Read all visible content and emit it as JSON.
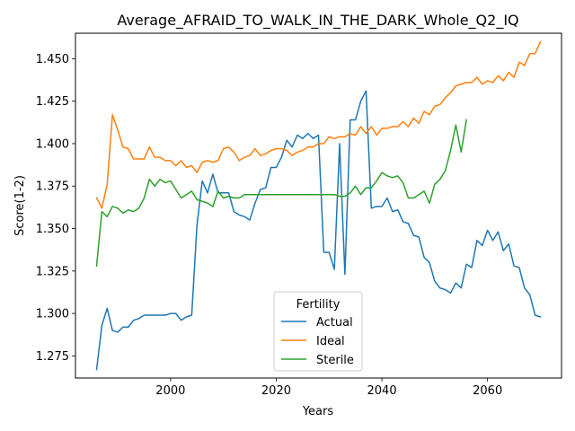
{
  "chart_data": {
    "type": "line",
    "title": "Average_AFRAID_TO_WALK_IN_THE_DARK_Whole_Q2_IQ",
    "xlabel": "Years",
    "ylabel": "Score(1-2)",
    "xlim": [
      1982,
      2074
    ],
    "ylim": [
      1.262,
      1.465
    ],
    "x_ticks": [
      2000,
      2020,
      2040,
      2060
    ],
    "x_tick_labels": [
      "2000",
      "2020",
      "2040",
      "2060"
    ],
    "y_ticks": [
      1.275,
      1.3,
      1.325,
      1.35,
      1.375,
      1.4,
      1.425,
      1.45
    ],
    "y_tick_labels": [
      "1.275",
      "1.300",
      "1.325",
      "1.350",
      "1.375",
      "1.400",
      "1.425",
      "1.450"
    ],
    "grid": false,
    "legend": {
      "title": "Fertility",
      "placement": "lower center"
    },
    "series": [
      {
        "name": "Actual",
        "color": "#1f77b4",
        "x": [
          1986,
          1987,
          1988,
          1989,
          1990,
          1991,
          1992,
          1993,
          1994,
          1995,
          1996,
          1997,
          1998,
          1999,
          2000,
          2001,
          2002,
          2003,
          2004,
          2005,
          2006,
          2007,
          2008,
          2009,
          2010,
          2011,
          2012,
          2013,
          2014,
          2015,
          2016,
          2017,
          2018,
          2019,
          2020,
          2021,
          2022,
          2023,
          2024,
          2025,
          2026,
          2027,
          2028,
          2029,
          2030,
          2031,
          2032,
          2033,
          2034,
          2035,
          2036,
          2037,
          2038,
          2039,
          2040,
          2041,
          2042,
          2043,
          2044,
          2045,
          2046,
          2047,
          2048,
          2049,
          2050,
          2051,
          2052,
          2053,
          2054,
          2055,
          2056,
          2057,
          2058,
          2059,
          2060,
          2061,
          2062,
          2063,
          2064,
          2065,
          2066,
          2067,
          2068,
          2069,
          2070
        ],
        "values": [
          1.267,
          1.293,
          1.303,
          1.29,
          1.289,
          1.292,
          1.292,
          1.296,
          1.297,
          1.299,
          1.299,
          1.299,
          1.299,
          1.299,
          1.3,
          1.3,
          1.296,
          1.298,
          1.299,
          1.352,
          1.378,
          1.371,
          1.382,
          1.371,
          1.371,
          1.371,
          1.36,
          1.358,
          1.357,
          1.355,
          1.365,
          1.373,
          1.374,
          1.386,
          1.386,
          1.392,
          1.402,
          1.398,
          1.405,
          1.403,
          1.406,
          1.403,
          1.405,
          1.336,
          1.336,
          1.326,
          1.4,
          1.323,
          1.414,
          1.414,
          1.425,
          1.431,
          1.362,
          1.363,
          1.363,
          1.368,
          1.36,
          1.361,
          1.354,
          1.353,
          1.346,
          1.345,
          1.333,
          1.33,
          1.319,
          1.315,
          1.314,
          1.312,
          1.318,
          1.315,
          1.329,
          1.327,
          1.343,
          1.34,
          1.349,
          1.343,
          1.348,
          1.337,
          1.341,
          1.328,
          1.327,
          1.315,
          1.311,
          1.299,
          1.298
        ]
      },
      {
        "name": "Ideal",
        "color": "#ff7f0e",
        "x": [
          1986,
          1987,
          1988,
          1989,
          1990,
          1991,
          1992,
          1993,
          1994,
          1995,
          1996,
          1997,
          1998,
          1999,
          2000,
          2001,
          2002,
          2003,
          2004,
          2005,
          2006,
          2007,
          2008,
          2009,
          2010,
          2011,
          2012,
          2013,
          2014,
          2015,
          2016,
          2017,
          2018,
          2019,
          2020,
          2021,
          2022,
          2023,
          2024,
          2025,
          2026,
          2027,
          2028,
          2029,
          2030,
          2031,
          2032,
          2033,
          2034,
          2035,
          2036,
          2037,
          2038,
          2039,
          2040,
          2041,
          2042,
          2043,
          2044,
          2045,
          2046,
          2047,
          2048,
          2049,
          2050,
          2051,
          2052,
          2053,
          2054,
          2055,
          2056,
          2057,
          2058,
          2059,
          2060,
          2061,
          2062,
          2063,
          2064,
          2065,
          2066,
          2067,
          2068,
          2069,
          2070
        ],
        "values": [
          1.368,
          1.362,
          1.376,
          1.417,
          1.408,
          1.398,
          1.397,
          1.391,
          1.391,
          1.391,
          1.398,
          1.392,
          1.392,
          1.39,
          1.39,
          1.387,
          1.39,
          1.386,
          1.387,
          1.383,
          1.389,
          1.39,
          1.389,
          1.39,
          1.397,
          1.398,
          1.395,
          1.39,
          1.392,
          1.393,
          1.397,
          1.393,
          1.394,
          1.396,
          1.397,
          1.397,
          1.396,
          1.393,
          1.395,
          1.396,
          1.398,
          1.398,
          1.4,
          1.4,
          1.404,
          1.403,
          1.404,
          1.404,
          1.406,
          1.405,
          1.41,
          1.406,
          1.41,
          1.405,
          1.409,
          1.409,
          1.41,
          1.41,
          1.413,
          1.41,
          1.415,
          1.412,
          1.419,
          1.417,
          1.422,
          1.423,
          1.427,
          1.43,
          1.434,
          1.435,
          1.436,
          1.436,
          1.439,
          1.435,
          1.437,
          1.436,
          1.44,
          1.437,
          1.442,
          1.439,
          1.448,
          1.446,
          1.453,
          1.453,
          1.46
        ]
      },
      {
        "name": "Sterile",
        "color": "#2ca02c",
        "x": [
          1986,
          1987,
          1988,
          1989,
          1990,
          1991,
          1992,
          1993,
          1994,
          1995,
          1996,
          1997,
          1998,
          1999,
          2000,
          2001,
          2002,
          2003,
          2004,
          2005,
          2006,
          2007,
          2008,
          2009,
          2010,
          2011,
          2012,
          2013,
          2014,
          2015,
          2016,
          2017,
          2018,
          2019,
          2020,
          2021,
          2022,
          2023,
          2024,
          2025,
          2026,
          2027,
          2028,
          2029,
          2030,
          2031,
          2032,
          2033,
          2034,
          2035,
          2036,
          2037,
          2038,
          2039,
          2040,
          2041,
          2042,
          2043,
          2044,
          2045,
          2046,
          2047,
          2048,
          2049,
          2050,
          2051,
          2052,
          2053,
          2054,
          2055,
          2056
        ],
        "values": [
          1.328,
          1.36,
          1.357,
          1.363,
          1.362,
          1.359,
          1.361,
          1.36,
          1.362,
          1.368,
          1.379,
          1.375,
          1.379,
          1.377,
          1.378,
          1.373,
          1.368,
          1.37,
          1.372,
          1.367,
          1.366,
          1.365,
          1.363,
          1.372,
          1.368,
          1.369,
          1.368,
          1.368,
          1.37,
          1.37,
          1.37,
          1.37,
          1.37,
          1.37,
          1.37,
          1.37,
          1.37,
          1.37,
          1.37,
          1.37,
          1.37,
          1.37,
          1.37,
          1.37,
          1.37,
          1.37,
          1.369,
          1.369,
          1.371,
          1.375,
          1.37,
          1.374,
          1.374,
          1.378,
          1.383,
          1.381,
          1.38,
          1.381,
          1.377,
          1.368,
          1.368,
          1.37,
          1.372,
          1.365,
          1.376,
          1.379,
          1.384,
          1.396,
          1.411,
          1.395,
          1.414
        ]
      }
    ]
  }
}
